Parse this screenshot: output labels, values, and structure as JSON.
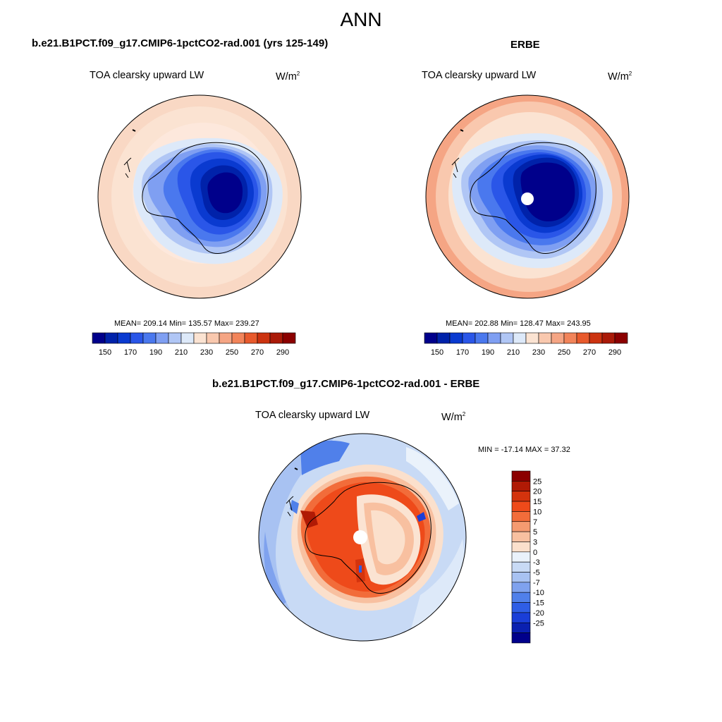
{
  "figure": {
    "title": "ANN",
    "panels": [
      {
        "id": "model",
        "header": "b.e21.B1PCT.f09_g17.CMIP6-1pctCO2-rad.001 (yrs 125-149)",
        "variable": "TOA clearsky upward LW",
        "units_main": "W/m",
        "units_sup": "2",
        "stats": "MEAN= 209.14  Min= 135.57  Max= 239.27",
        "mean": 209.14,
        "min": 135.57,
        "max": 239.27,
        "has_pole_hole": false
      },
      {
        "id": "obs",
        "header": "ERBE",
        "variable": "TOA clearsky upward LW",
        "units_main": "W/m",
        "units_sup": "2",
        "stats": "MEAN= 202.88  Min= 128.47  Max= 243.95",
        "mean": 202.88,
        "min": 128.47,
        "max": 243.95,
        "has_pole_hole": true
      },
      {
        "id": "diff",
        "header": "b.e21.B1PCT.f09_g17.CMIP6-1pctCO2-rad.001 - ERBE",
        "variable": "TOA clearsky upward LW",
        "units_main": "W/m",
        "units_sup": "2",
        "stats": "MIN = -17.14 MAX =  37.32",
        "min": -17.14,
        "max": 37.32,
        "has_pole_hole": true
      }
    ],
    "colorbar_abs": {
      "colors": [
        "#00008b",
        "#0022aa",
        "#0a3ad0",
        "#2a56e8",
        "#4a78ee",
        "#7f9ff2",
        "#b0c6f5",
        "#dde9f9",
        "#fbe3d2",
        "#f9c8ae",
        "#f5a584",
        "#f2845a",
        "#e85a2c",
        "#cc3310",
        "#aa1a08",
        "#8b0000"
      ],
      "tick_labels": [
        "150",
        "170",
        "190",
        "210",
        "230",
        "250",
        "270",
        "290"
      ]
    },
    "colorbar_diff": {
      "colors": [
        "#8b0000",
        "#b01a05",
        "#d4330d",
        "#ee4a1a",
        "#f26c3a",
        "#f59a70",
        "#f8c0a0",
        "#fbe0cc",
        "#eaf2fb",
        "#c8daf5",
        "#a8c2f2",
        "#7fa2ee",
        "#5080ea",
        "#2f5ee6",
        "#1a3ed8",
        "#0a20b0",
        "#00008b"
      ],
      "tick_labels": [
        "25",
        "20",
        "15",
        "10",
        "7",
        "5",
        "3",
        "0",
        "-3",
        "-5",
        "-7",
        "-10",
        "-15",
        "-20",
        "-25"
      ]
    }
  }
}
